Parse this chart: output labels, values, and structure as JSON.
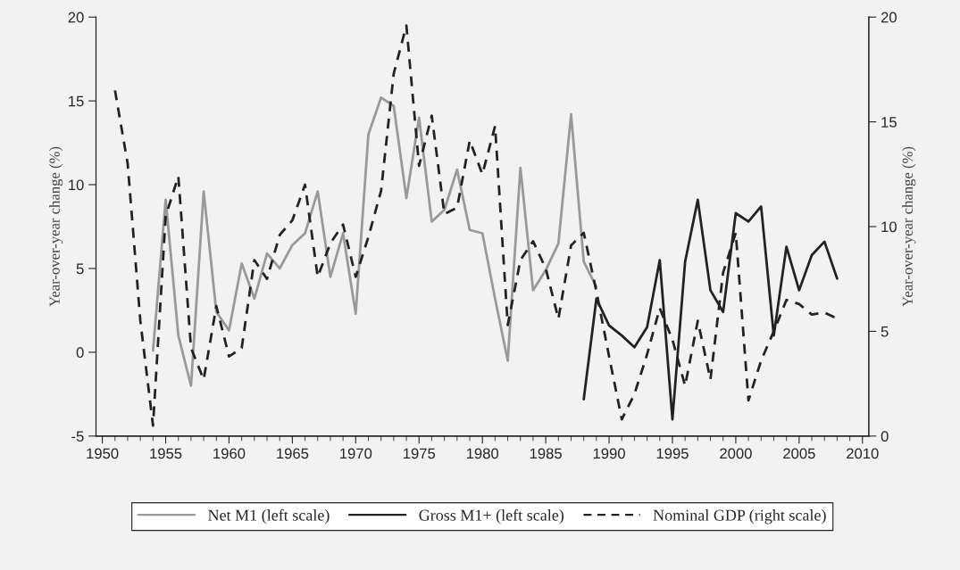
{
  "chart_data": {
    "type": "line",
    "ylabel": "Year-over-year change (%)",
    "y2label": "Year-over-year change (%)",
    "xlim": [
      1949.5,
      2010.5
    ],
    "xticks": [
      1950,
      1955,
      1960,
      1965,
      1970,
      1975,
      1980,
      1985,
      1990,
      1995,
      2000,
      2005,
      2010
    ],
    "ylim": [
      -5,
      20
    ],
    "yticks": [
      -5,
      0,
      5,
      10,
      15,
      20
    ],
    "y2lim": [
      0,
      20
    ],
    "y2ticks": [
      0,
      5,
      10,
      15,
      20
    ],
    "grid": false,
    "legend": "bottom",
    "marker": "none",
    "series": [
      {
        "name": "Net M1 (left scale)",
        "color": "#999999",
        "line_style": "solid",
        "axis": "y",
        "x": [
          1954,
          1955,
          1956,
          1957,
          1958,
          1959,
          1960,
          1961,
          1962,
          1963,
          1964,
          1965,
          1966,
          1967,
          1968,
          1969,
          1970,
          1971,
          1972,
          1973,
          1974,
          1975,
          1976,
          1977,
          1978,
          1979,
          1980,
          1981,
          1982,
          1983,
          1984,
          1985,
          1986,
          1987,
          1988,
          1989
        ],
        "values": [
          0.1,
          9.1,
          1.0,
          -2.0,
          9.6,
          2.4,
          1.3,
          5.3,
          3.2,
          5.9,
          5.0,
          6.4,
          7.1,
          9.6,
          4.5,
          7.1,
          2.3,
          13.0,
          15.2,
          14.7,
          9.2,
          14.0,
          7.8,
          8.5,
          10.9,
          7.3,
          7.1,
          3.2,
          -0.5,
          11.0,
          3.7,
          4.9,
          6.5,
          14.2,
          5.4,
          3.9
        ]
      },
      {
        "name": "Gross M1+ (left scale)",
        "color": "#222222",
        "line_style": "solid",
        "axis": "y",
        "x": [
          1988,
          1989,
          1990,
          1991,
          1992,
          1993,
          1994,
          1995,
          1996,
          1997,
          1998,
          1999,
          2000,
          2001,
          2002,
          2003,
          2004,
          2005,
          2006,
          2007,
          2008
        ],
        "values": [
          -2.8,
          3.2,
          1.6,
          1.0,
          0.3,
          1.5,
          5.5,
          -4.0,
          5.4,
          9.1,
          3.7,
          2.4,
          8.3,
          7.8,
          8.7,
          1.0,
          6.3,
          3.7,
          5.8,
          6.6,
          4.4
        ]
      },
      {
        "name": "Nominal GDP (right scale)",
        "color": "#222222",
        "line_style": "dashed",
        "axis": "y2",
        "x": [
          1951,
          1952,
          1953,
          1954,
          1955,
          1956,
          1957,
          1958,
          1959,
          1960,
          1961,
          1962,
          1963,
          1964,
          1965,
          1966,
          1967,
          1968,
          1969,
          1970,
          1971,
          1972,
          1973,
          1974,
          1975,
          1976,
          1977,
          1978,
          1979,
          1980,
          1981,
          1982,
          1983,
          1984,
          1985,
          1986,
          1987,
          1988,
          1989,
          1990,
          1991,
          1992,
          1993,
          1994,
          1995,
          1996,
          1997,
          1998,
          1999,
          2000,
          2001,
          2002,
          2003,
          2004,
          2005,
          2006,
          2007,
          2008
        ],
        "values": [
          16.5,
          13.0,
          5.5,
          0.5,
          10.5,
          12.4,
          4.2,
          2.7,
          6.2,
          3.8,
          4.2,
          8.4,
          7.5,
          9.6,
          10.3,
          12.0,
          7.6,
          9.2,
          10.1,
          7.6,
          9.5,
          11.7,
          17.3,
          19.6,
          12.9,
          15.3,
          10.6,
          10.9,
          14.1,
          12.5,
          14.8,
          5.3,
          8.4,
          9.3,
          8.0,
          5.6,
          9.1,
          9.7,
          6.9,
          3.8,
          0.8,
          2.0,
          3.9,
          6.1,
          4.6,
          2.4,
          5.5,
          2.7,
          7.8,
          9.7,
          1.7,
          3.6,
          5.0,
          6.5,
          6.3,
          5.8,
          5.9,
          5.6
        ]
      }
    ]
  }
}
